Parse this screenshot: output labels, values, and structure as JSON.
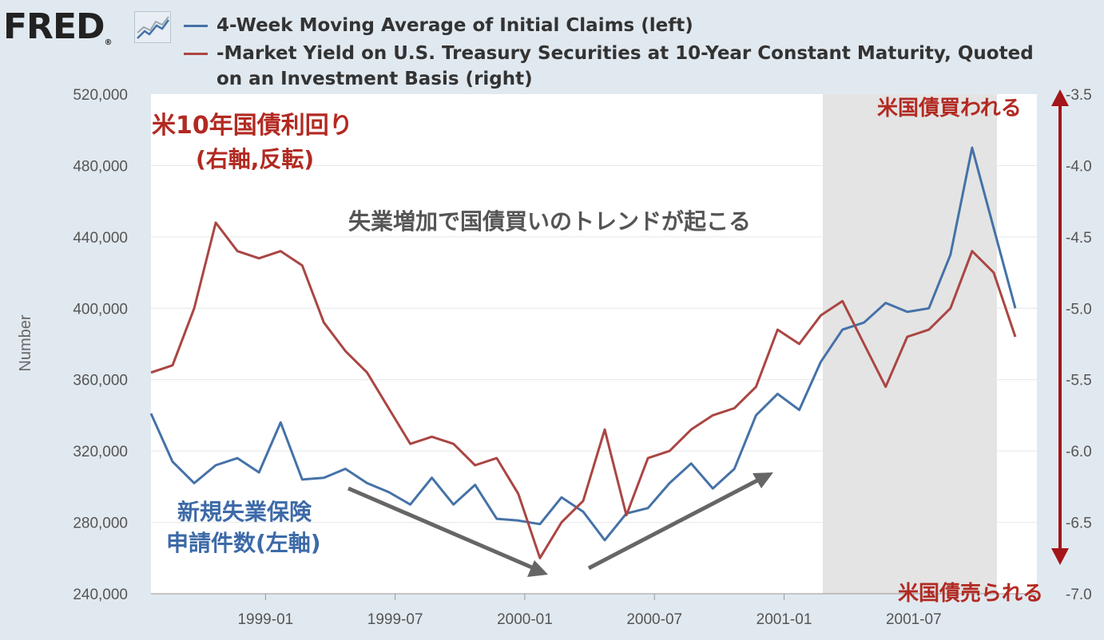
{
  "header": {
    "logo_text": "FRED",
    "logo_mark": "®",
    "legend": [
      {
        "label": "4-Week Moving Average of Initial Claims (left)",
        "color": "#4572a7"
      },
      {
        "label": "-Market Yield on U.S. Treasury Securities at 10-Year Constant Maturity, Quoted",
        "label_line2": "on an Investment Basis (right)",
        "color": "#aa4643"
      }
    ]
  },
  "chart_data": {
    "type": "line",
    "ylabel": "Number",
    "left_axis": {
      "ticks": [
        "520,000",
        "480,000",
        "440,000",
        "400,000",
        "360,000",
        "320,000",
        "280,000",
        "240,000"
      ],
      "range": [
        240000,
        520000
      ]
    },
    "right_axis": {
      "ticks": [
        "-3.5",
        "-4.0",
        "-4.5",
        "-5.0",
        "-5.5",
        "-6.0",
        "-6.5",
        "-7.0"
      ],
      "range": [
        -7.0,
        -3.5
      ]
    },
    "x_ticks": [
      "1999-01",
      "1999-07",
      "2000-01",
      "2000-07",
      "2001-01",
      "2001-07"
    ],
    "recession_shading": {
      "start": "2001-03",
      "end": "2001-11"
    },
    "series": [
      {
        "name": "4-Week Moving Average of Initial Claims (left)",
        "axis": "left",
        "color": "#4572a7",
        "x": [
          "1998-07",
          "1998-08",
          "1998-09",
          "1998-10",
          "1998-11",
          "1998-12",
          "1999-01",
          "1999-02",
          "1999-03",
          "1999-04",
          "1999-05",
          "1999-06",
          "1999-07",
          "1999-08",
          "1999-09",
          "1999-10",
          "1999-11",
          "1999-12",
          "2000-01",
          "2000-02",
          "2000-03",
          "2000-04",
          "2000-05",
          "2000-06",
          "2000-07",
          "2000-08",
          "2000-09",
          "2000-10",
          "2000-11",
          "2000-12",
          "2001-01",
          "2001-02",
          "2001-03",
          "2001-04",
          "2001-05",
          "2001-06",
          "2001-07",
          "2001-08",
          "2001-09",
          "2001-10",
          "2001-11"
        ],
        "values": [
          341000,
          314000,
          302000,
          312000,
          316000,
          308000,
          336000,
          304000,
          305000,
          310000,
          302000,
          297000,
          290000,
          305000,
          290000,
          301000,
          282000,
          281000,
          279000,
          294000,
          286000,
          270000,
          285000,
          288000,
          302000,
          313000,
          299000,
          310000,
          340000,
          352000,
          343000,
          370000,
          388000,
          392000,
          403000,
          398000,
          400000,
          430000,
          490000,
          445000,
          400000
        ]
      },
      {
        "name": "-Market Yield on U.S. Treasury Securities at 10-Year Constant Maturity, Quoted on an Investment Basis (right)",
        "axis": "right",
        "color": "#aa4643",
        "x": [
          "1998-07",
          "1998-08",
          "1998-09",
          "1998-10",
          "1998-11",
          "1998-12",
          "1999-01",
          "1999-02",
          "1999-03",
          "1999-04",
          "1999-05",
          "1999-06",
          "1999-07",
          "1999-08",
          "1999-09",
          "1999-10",
          "1999-11",
          "1999-12",
          "2000-01",
          "2000-02",
          "2000-03",
          "2000-04",
          "2000-05",
          "2000-06",
          "2000-07",
          "2000-08",
          "2000-09",
          "2000-10",
          "2000-11",
          "2000-12",
          "2001-01",
          "2001-02",
          "2001-03",
          "2001-04",
          "2001-05",
          "2001-06",
          "2001-07",
          "2001-08",
          "2001-09",
          "2001-10",
          "2001-11"
        ],
        "values": [
          -5.45,
          -5.4,
          -5.0,
          -4.4,
          -4.6,
          -4.65,
          -4.6,
          -4.7,
          -5.1,
          -5.3,
          -5.45,
          -5.7,
          -5.95,
          -5.9,
          -5.95,
          -6.1,
          -6.05,
          -6.3,
          -6.75,
          -6.5,
          -6.35,
          -5.85,
          -6.45,
          -6.05,
          -6.0,
          -5.85,
          -5.75,
          -5.7,
          -5.55,
          -5.15,
          -5.25,
          -5.05,
          -4.95,
          -5.25,
          -5.55,
          -5.2,
          -5.15,
          -5.0,
          -4.6,
          -4.75,
          -5.2
        ]
      }
    ],
    "annotations": [
      {
        "text_line1": "米10年国債利回り",
        "text_line2": "(右軸,反転)",
        "color": "#b22a22"
      },
      {
        "text": "失業増加で国債買いのトレンドが起こる",
        "color": "#555555"
      },
      {
        "text_line1": "新規失業保険",
        "text_line2": "申請件数(左軸)",
        "color": "#3d6aa8"
      },
      {
        "text": "米国債買われる",
        "color": "#b22a22"
      },
      {
        "text": "米国債売られる",
        "color": "#b22a22"
      }
    ]
  }
}
